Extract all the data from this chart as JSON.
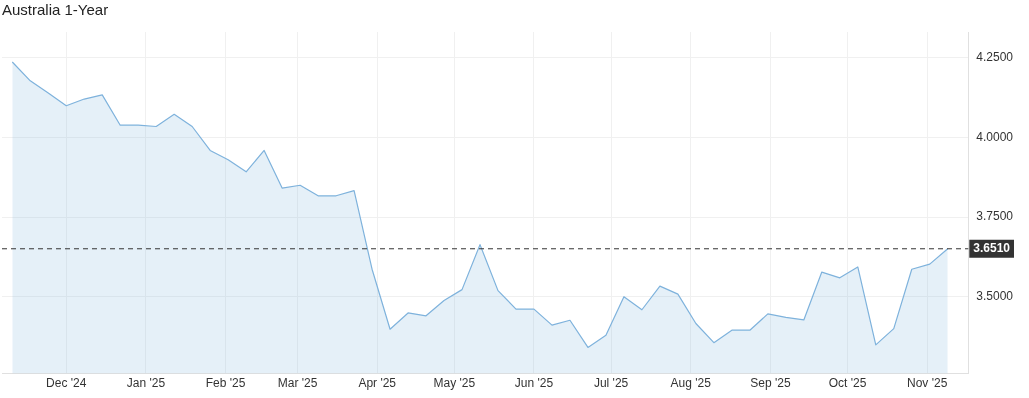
{
  "chart_data": {
    "type": "area",
    "title": "Australia 1-Year",
    "x": [
      "2024-11-10",
      "2024-11-17",
      "2024-11-24",
      "2024-12-01",
      "2024-12-08",
      "2024-12-15",
      "2024-12-22",
      "2024-12-29",
      "2025-01-05",
      "2025-01-12",
      "2025-01-19",
      "2025-01-26",
      "2025-02-02",
      "2025-02-09",
      "2025-02-16",
      "2025-02-23",
      "2025-03-02",
      "2025-03-09",
      "2025-03-16",
      "2025-03-23",
      "2025-03-30",
      "2025-04-06",
      "2025-04-13",
      "2025-04-20",
      "2025-04-27",
      "2025-05-04",
      "2025-05-11",
      "2025-05-18",
      "2025-05-25",
      "2025-06-01",
      "2025-06-08",
      "2025-06-15",
      "2025-06-22",
      "2025-06-29",
      "2025-07-06",
      "2025-07-13",
      "2025-07-20",
      "2025-07-27",
      "2025-08-03",
      "2025-08-10",
      "2025-08-17",
      "2025-08-24",
      "2025-08-31",
      "2025-09-07",
      "2025-09-14",
      "2025-09-21",
      "2025-09-28",
      "2025-10-05",
      "2025-10-12",
      "2025-10-19",
      "2025-10-26",
      "2025-11-02",
      "2025-11-09"
    ],
    "series": [
      {
        "color": "#7eb2dc",
        "values": [
          4.236,
          4.177,
          4.139,
          4.099,
          4.12,
          4.133,
          4.038,
          4.038,
          4.034,
          4.072,
          4.034,
          3.959,
          3.93,
          3.892,
          3.959,
          3.841,
          3.85,
          3.817,
          3.817,
          3.833,
          3.587,
          3.399,
          3.45,
          3.441,
          3.489,
          3.523,
          3.664,
          3.52,
          3.462,
          3.462,
          3.412,
          3.427,
          3.342,
          3.38,
          3.501,
          3.46,
          3.534,
          3.509,
          3.417,
          3.357,
          3.396,
          3.396,
          3.447,
          3.436,
          3.428,
          3.578,
          3.56,
          3.594,
          3.35,
          3.401,
          3.587,
          3.603,
          3.651
        ]
      }
    ],
    "xlim": [
      "2024-11-06",
      "2025-11-17"
    ],
    "xticks": [
      {
        "value": "2024-12-01",
        "label": "Dec '24"
      },
      {
        "value": "2025-01-01",
        "label": "Jan '25"
      },
      {
        "value": "2025-02-01",
        "label": "Feb '25"
      },
      {
        "value": "2025-03-01",
        "label": "Mar '25"
      },
      {
        "value": "2025-04-01",
        "label": "Apr '25"
      },
      {
        "value": "2025-05-01",
        "label": "May '25"
      },
      {
        "value": "2025-06-01",
        "label": "Jun '25"
      },
      {
        "value": "2025-07-01",
        "label": "Jul '25"
      },
      {
        "value": "2025-08-01",
        "label": "Aug '25"
      },
      {
        "value": "2025-09-01",
        "label": "Sep '25"
      },
      {
        "value": "2025-10-01",
        "label": "Oct '25"
      },
      {
        "value": "2025-11-01",
        "label": "Nov '25"
      }
    ],
    "ylim": [
      3.26,
      4.33
    ],
    "yticks": [
      {
        "value": 3.5,
        "label": "3.5000"
      },
      {
        "value": 3.75,
        "label": "3.7500"
      },
      {
        "value": 4,
        "label": "4.0000"
      },
      {
        "value": 4.25,
        "label": "4.2500"
      }
    ],
    "ref_lines": [
      {
        "axis": "y",
        "value": 3.651,
        "label": "3.6510",
        "color": "#333333",
        "line_style": "dashed"
      }
    ],
    "grid": true,
    "legend": false,
    "marker": "none",
    "line_style": "solid"
  }
}
